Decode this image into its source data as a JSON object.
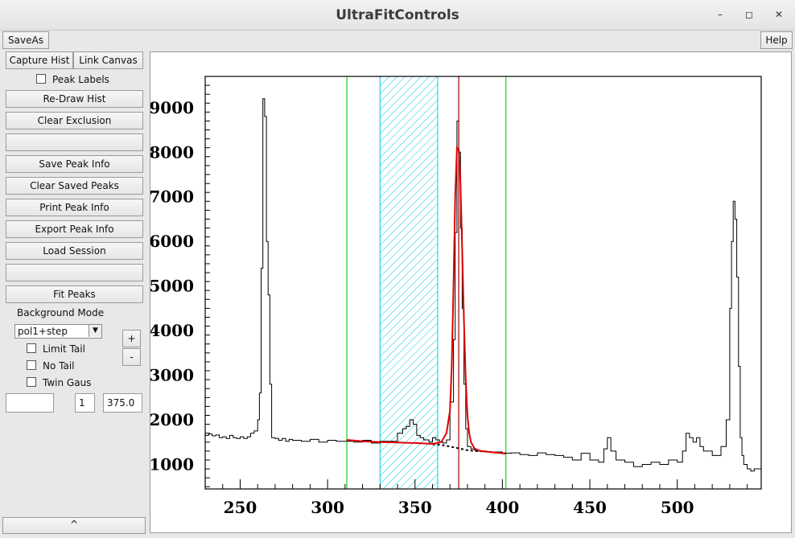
{
  "window": {
    "title": "UltraFitControls"
  },
  "menubar": {
    "saveas": "SaveAs",
    "help": "Help"
  },
  "sidebar": {
    "capture_hist": "Capture Hist",
    "link_canvas": "Link Canvas",
    "peak_labels": "Peak Labels",
    "redraw_hist": "Re-Draw Hist",
    "clear_exclusion": "Clear Exclusion",
    "blank1": "",
    "save_peak_info": "Save Peak Info",
    "clear_saved_peaks": "Clear Saved Peaks",
    "print_peak_info": "Print Peak Info",
    "export_peak_info": "Export Peak Info",
    "load_session": "Load Session",
    "blank2": "",
    "fit_peaks": "Fit Peaks",
    "background_mode_label": "Background Mode",
    "background_mode_value": "pol1+step",
    "plus": "+",
    "minus": "-",
    "limit_tail": "Limit Tail",
    "no_tail": "No Tail",
    "twin_gaus": "Twin Gaus",
    "field_empty": "",
    "field_count": "1",
    "field_value": "375.0",
    "collapse": "^"
  },
  "chart_data": {
    "type": "line",
    "title": "",
    "xlabel": "",
    "ylabel": "",
    "xlim": [
      230,
      548
    ],
    "ylim": [
      450,
      9700
    ],
    "x_ticks": [
      250,
      300,
      350,
      400,
      450,
      500
    ],
    "y_ticks": [
      1000,
      2000,
      3000,
      4000,
      5000,
      6000,
      7000,
      8000,
      9000
    ],
    "histogram": {
      "x": [
        230,
        232,
        234,
        236,
        238,
        240,
        242,
        244,
        246,
        248,
        250,
        252,
        254,
        256,
        258,
        260,
        261,
        262,
        263,
        264,
        265,
        266,
        267,
        268,
        270,
        272,
        274,
        276,
        278,
        280,
        285,
        290,
        295,
        300,
        305,
        310,
        315,
        320,
        325,
        330,
        335,
        340,
        343,
        345,
        347,
        349,
        351,
        353,
        355,
        358,
        360,
        362,
        364,
        366,
        368,
        370,
        372,
        373,
        374,
        375,
        376,
        377,
        378,
        379,
        380,
        382,
        384,
        386,
        390,
        395,
        400,
        405,
        410,
        415,
        420,
        425,
        430,
        435,
        440,
        445,
        450,
        455,
        458,
        460,
        462,
        465,
        470,
        475,
        480,
        485,
        490,
        495,
        500,
        503,
        505,
        507,
        509,
        511,
        513,
        515,
        520,
        525,
        528,
        530,
        531,
        532,
        533,
        534,
        535,
        536,
        537,
        538,
        540,
        542,
        544,
        546,
        548
      ],
      "y": [
        1650,
        1680,
        1640,
        1660,
        1600,
        1620,
        1580,
        1650,
        1600,
        1580,
        1620,
        1580,
        1620,
        1700,
        1750,
        2000,
        2600,
        5400,
        9200,
        8800,
        6000,
        4800,
        2800,
        1600,
        1580,
        1540,
        1580,
        1520,
        1560,
        1540,
        1520,
        1560,
        1500,
        1540,
        1520,
        1520,
        1500,
        1540,
        1480,
        1520,
        1520,
        1700,
        1800,
        1850,
        2000,
        1900,
        1650,
        1600,
        1550,
        1500,
        1600,
        1550,
        1500,
        1480,
        1550,
        2400,
        3800,
        6200,
        8700,
        8000,
        6300,
        4500,
        2800,
        1800,
        1400,
        1350,
        1320,
        1300,
        1280,
        1280,
        1250,
        1260,
        1220,
        1200,
        1260,
        1220,
        1200,
        1160,
        1100,
        1250,
        1100,
        1050,
        1350,
        1600,
        1300,
        1100,
        1050,
        950,
        1000,
        1050,
        1000,
        1100,
        1050,
        1300,
        1700,
        1600,
        1500,
        1600,
        1400,
        1300,
        1200,
        1400,
        2000,
        4500,
        6000,
        6900,
        6500,
        5200,
        3200,
        1600,
        1200,
        1000,
        900,
        850,
        900,
        900,
        900
      ]
    },
    "fit_curve": {
      "x": [
        311,
        320,
        330,
        340,
        350,
        360,
        365,
        368,
        370,
        371,
        372,
        373,
        374,
        375,
        376,
        377,
        378,
        379,
        380,
        381,
        382,
        384,
        386,
        388,
        390,
        395,
        400,
        402
      ],
      "y": [
        1550,
        1520,
        1500,
        1490,
        1480,
        1460,
        1500,
        1700,
        2200,
        3200,
        5000,
        7000,
        8100,
        8050,
        7300,
        5800,
        4200,
        2900,
        2100,
        1700,
        1500,
        1360,
        1320,
        1300,
        1290,
        1270,
        1250,
        1240
      ]
    },
    "background_curve": {
      "x": [
        360,
        365,
        370,
        375,
        380,
        385,
        390,
        395,
        400,
        402
      ],
      "y": [
        1450,
        1440,
        1400,
        1360,
        1320,
        1300,
        1290,
        1270,
        1260,
        1250
      ]
    },
    "markers": {
      "fit_range": [
        311,
        402
      ],
      "exclusion_band": [
        330,
        363
      ],
      "peak_centroid": 375.0
    },
    "colors": {
      "histogram": "#000000",
      "fit": "#e00000",
      "background": "#000000",
      "fit_range": "#22cc22",
      "exclusion": "#00c8dc",
      "peak_centroid": "#a00000"
    }
  }
}
